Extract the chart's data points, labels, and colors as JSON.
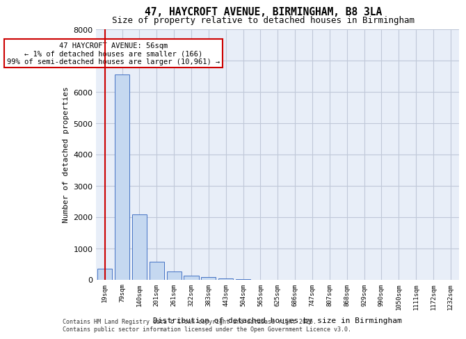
{
  "title_line1": "47, HAYCROFT AVENUE, BIRMINGHAM, B8 3LA",
  "title_line2": "Size of property relative to detached houses in Birmingham",
  "xlabel": "Distribution of detached houses by size in Birmingham",
  "ylabel": "Number of detached properties",
  "bar_color": "#c5d8f0",
  "bar_edge_color": "#4472c4",
  "grid_color": "#c0c8d8",
  "background_color": "#e8eef8",
  "annotation_text": "47 HAYCROFT AVENUE: 56sqm\n← 1% of detached houses are smaller (166)\n99% of semi-detached houses are larger (10,961) →",
  "annotation_box_color": "#ffffff",
  "annotation_border_color": "#cc0000",
  "red_line_x": 0,
  "property_sqm": 56,
  "categories": [
    "19sqm",
    "79sqm",
    "140sqm",
    "201sqm",
    "261sqm",
    "322sqm",
    "383sqm",
    "443sqm",
    "504sqm",
    "565sqm",
    "625sqm",
    "686sqm",
    "747sqm",
    "807sqm",
    "868sqm",
    "929sqm",
    "990sqm",
    "1050sqm",
    "1111sqm",
    "1172sqm",
    "1232sqm"
  ],
  "values": [
    350,
    6550,
    2100,
    580,
    270,
    130,
    80,
    50,
    20,
    5,
    2,
    1,
    0,
    0,
    0,
    0,
    0,
    0,
    0,
    0,
    0
  ],
  "ylim": [
    0,
    8000
  ],
  "yticks": [
    0,
    1000,
    2000,
    3000,
    4000,
    5000,
    6000,
    7000,
    8000
  ],
  "footer_text": "Contains HM Land Registry data © Crown copyright and database right 2025.\nContains public sector information licensed under the Open Government Licence v3.0.",
  "fig_bg_color": "#ffffff"
}
